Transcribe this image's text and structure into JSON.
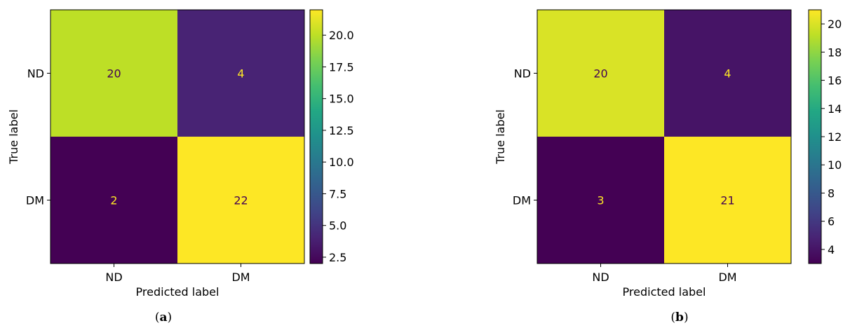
{
  "chart_data": [
    {
      "type": "heatmap",
      "caption": "a",
      "xlabel": "Predicted label",
      "ylabel": "True label",
      "x_categories": [
        "ND",
        "DM"
      ],
      "y_categories": [
        "ND",
        "DM"
      ],
      "values": [
        [
          20,
          4
        ],
        [
          2,
          22
        ]
      ],
      "colormap": "viridis",
      "color_range": [
        2,
        22
      ],
      "colorbar_ticks": [
        "2.5",
        "5.0",
        "7.5",
        "10.0",
        "12.5",
        "15.0",
        "17.5",
        "20.0"
      ]
    },
    {
      "type": "heatmap",
      "caption": "b",
      "xlabel": "Predicted label",
      "ylabel": "True label",
      "x_categories": [
        "ND",
        "DM"
      ],
      "y_categories": [
        "ND",
        "DM"
      ],
      "values": [
        [
          20,
          4
        ],
        [
          3,
          21
        ]
      ],
      "colormap": "viridis",
      "color_range": [
        3,
        21
      ],
      "colorbar_ticks": [
        "4",
        "6",
        "8",
        "10",
        "12",
        "14",
        "16",
        "18",
        "20"
      ]
    }
  ]
}
